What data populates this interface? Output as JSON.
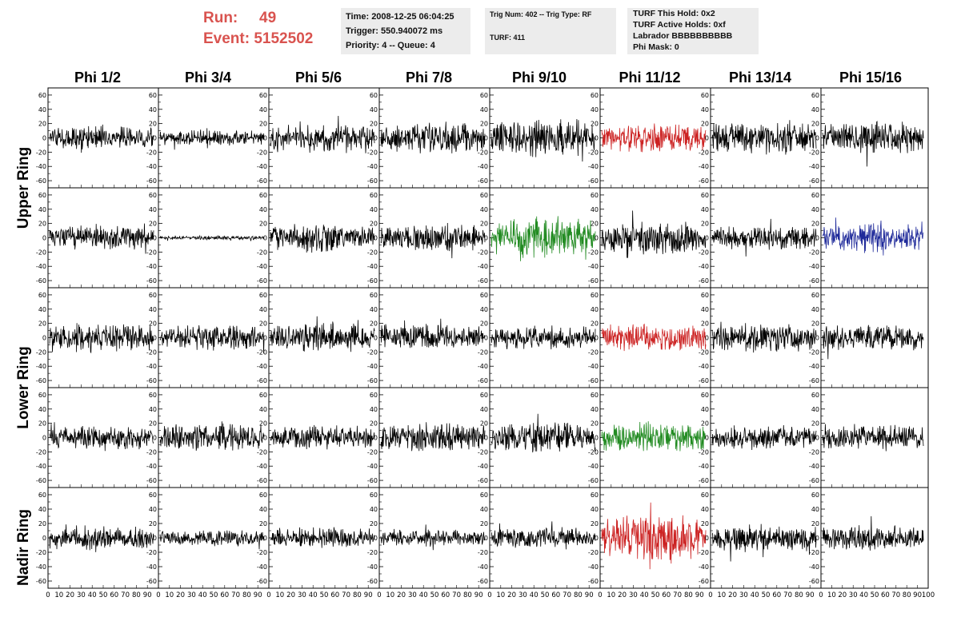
{
  "header": {
    "run_label": "Run:",
    "run_value": "49",
    "event_label": "Event:",
    "event_value": "5152502",
    "time": "Time: 2008-12-25 06:04:25",
    "trigger": "Trigger: 550.940072 ms",
    "priority": "Priority: 4 -- Queue: 4",
    "trig_num": "Trig Num: 402 -- Trig Type: RF",
    "turf": "TURF: 411",
    "turf_hold": "TURF This Hold: 0x2",
    "turf_active": "TURF Active Holds: 0xf",
    "labrador": "Labrador BBBBBBBBBB",
    "phi_mask": "Phi Mask: 0"
  },
  "columns": [
    "Phi 1/2",
    "Phi 3/4",
    "Phi 5/6",
    "Phi 7/8",
    "Phi 9/10",
    "Phi 11/12",
    "Phi 13/14",
    "Phi 15/16"
  ],
  "row_groups": [
    "Upper Ring",
    "Lower Ring",
    "Nadir Ring"
  ],
  "y_ticks": [
    "60",
    "40",
    "20",
    "0",
    "-20",
    "-40",
    "-60"
  ],
  "x_ticks": [
    "0",
    "10",
    "20",
    "30",
    "40",
    "50",
    "60",
    "70",
    "80",
    "90",
    "100"
  ],
  "colors": {
    "default": "#000000",
    "red": "#cc2222",
    "green": "#228b22",
    "blue": "#1f2a9a",
    "run_text": "#d9534f",
    "box_bg": "#ececec"
  },
  "trace_amplitudes": [
    [
      12,
      8,
      14,
      15,
      18,
      14,
      16,
      16
    ],
    [
      12,
      2,
      14,
      14,
      20,
      16,
      12,
      14
    ],
    [
      14,
      12,
      15,
      14,
      12,
      14,
      14,
      13
    ],
    [
      12,
      14,
      12,
      14,
      14,
      16,
      12,
      13
    ],
    [
      12,
      8,
      10,
      8,
      10,
      22,
      13,
      12
    ]
  ],
  "trace_colors": [
    [
      "default",
      "default",
      "default",
      "default",
      "default",
      "red",
      "default",
      "default"
    ],
    [
      "default",
      "default",
      "default",
      "default",
      "green",
      "default",
      "default",
      "blue"
    ],
    [
      "default",
      "default",
      "default",
      "default",
      "default",
      "red",
      "default",
      "default"
    ],
    [
      "default",
      "default",
      "default",
      "default",
      "default",
      "green",
      "default",
      "default"
    ],
    [
      "default",
      "default",
      "default",
      "default",
      "default",
      "red",
      "default",
      "default"
    ]
  ]
}
